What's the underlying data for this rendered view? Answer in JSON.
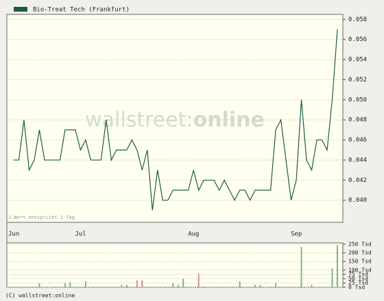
{
  "chart_data": [
    {
      "type": "line",
      "series": [
        {
          "name": "Bio-Treat Tech (Frankfurt)",
          "color": "#1e5a46",
          "values": [
            0.044,
            0.044,
            0.048,
            0.043,
            0.044,
            0.047,
            0.044,
            0.044,
            0.044,
            0.044,
            0.047,
            0.047,
            0.047,
            0.045,
            0.046,
            0.044,
            0.044,
            0.044,
            0.048,
            0.044,
            0.045,
            0.045,
            0.045,
            0.046,
            0.045,
            0.043,
            0.045,
            0.039,
            0.043,
            0.04,
            0.04,
            0.041,
            0.041,
            0.041,
            0.041,
            0.043,
            0.041,
            0.042,
            0.042,
            0.042,
            0.041,
            0.042,
            0.041,
            0.04,
            0.041,
            0.041,
            0.04,
            0.041,
            0.041,
            0.041,
            0.041,
            0.047,
            0.048,
            0.044,
            0.04,
            0.042,
            0.05,
            0.044,
            0.043,
            0.046,
            0.046,
            0.045,
            0.05,
            0.057
          ]
        }
      ],
      "categories": [
        "Jun",
        null,
        null,
        null,
        null,
        null,
        null,
        null,
        null,
        null,
        null,
        null,
        null,
        "Jul",
        null,
        null,
        null,
        null,
        null,
        null,
        null,
        null,
        null,
        null,
        null,
        null,
        null,
        null,
        null,
        null,
        null,
        null,
        null,
        null,
        null,
        "Aug",
        null,
        null,
        null,
        null,
        null,
        null,
        null,
        null,
        null,
        null,
        null,
        null,
        null,
        null,
        null,
        null,
        null,
        null,
        null,
        "Sep",
        null,
        null,
        null,
        null,
        null,
        null,
        null,
        null
      ],
      "ylim": [
        0.0378,
        0.0585
      ],
      "yticks": [
        {
          "value": 0.04,
          "label": "0.040"
        },
        0.042,
        0.044,
        0.046,
        0.048,
        {
          "value": 0.05,
          "label": "0.050"
        },
        0.052,
        0.054,
        0.056,
        0.058
      ],
      "grid": true,
      "watermark": {
        "light": "wallstreet:",
        "bold": "online"
      },
      "note": "1 Wert entspricht 1 Tag"
    },
    {
      "type": "bar",
      "values": [
        2,
        2,
        2,
        2,
        2,
        25,
        2,
        2,
        2,
        2,
        25,
        30,
        2,
        2,
        35,
        2,
        2,
        2,
        2,
        2,
        2,
        15,
        15,
        2,
        40,
        40,
        2,
        2,
        2,
        2,
        2,
        25,
        15,
        50,
        2,
        2,
        80,
        5,
        2,
        2,
        2,
        2,
        2,
        2,
        35,
        2,
        2,
        15,
        15,
        2,
        2,
        25,
        2,
        2,
        2,
        2,
        235,
        2,
        15,
        2,
        2,
        2,
        110,
        245
      ],
      "colors": [
        "#7cba7c",
        "#d08c8c",
        "#7cba7c",
        "#d08c8c",
        "#7cba7c",
        "#7cba7c",
        "#d08c8c",
        "#7cba7c",
        "#7cba7c",
        "#d08c8c",
        "#7cba7c",
        "#7cba7c",
        "#d08c8c",
        "#7cba7c",
        "#7cba7c",
        "#d08c8c",
        "#7cba7c",
        "#d08c8c",
        "#7cba7c",
        "#d08c8c",
        "#7cba7c",
        "#7cba7c",
        "#7cba7c",
        "#d08c8c",
        "#d08c8c",
        "#d08c8c",
        "#7cba7c",
        "#d08c8c",
        "#7cba7c",
        "#d08c8c",
        "#7cba7c",
        "#7cba7c",
        "#7cba7c",
        "#7cba7c",
        "#d08c8c",
        "#7cba7c",
        "#d08c8c",
        "#7cba7c",
        "#d08c8c",
        "#7cba7c",
        "#d08c8c",
        "#7cba7c",
        "#d08c8c",
        "#7cba7c",
        "#7cba7c",
        "#d08c8c",
        "#7cba7c",
        "#7cba7c",
        "#7cba7c",
        "#d08c8c",
        "#7cba7c",
        "#7cba7c",
        "#d08c8c",
        "#7cba7c",
        "#d08c8c",
        "#7cba7c",
        "#7cba7c",
        "#d08c8c",
        "#d08c8c",
        "#7cba7c",
        "#d08c8c",
        "#7cba7c",
        "#7cba7c",
        "#7cba7c"
      ],
      "ylim": [
        0,
        258
      ],
      "yticks": [
        {
          "value": 0,
          "label": "0 Tsd"
        },
        {
          "value": 25,
          "label": "25 Tsd"
        },
        {
          "value": 50,
          "label": "50 Tsd"
        },
        {
          "value": 75,
          "label": "75 Tsd"
        },
        {
          "value": 100,
          "label": "100 Tsd"
        },
        {
          "value": 150,
          "label": "150 Tsd"
        },
        {
          "value": 200,
          "label": "200 Tsd"
        },
        {
          "value": 250,
          "label": "250 Tsd"
        }
      ],
      "grid": true
    }
  ],
  "footer": "(C) wallstreet:online"
}
